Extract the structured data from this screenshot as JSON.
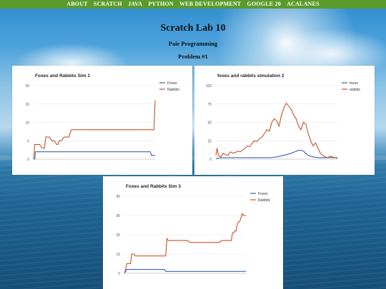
{
  "nav": {
    "items": [
      "ABOUT",
      "SCRATCH",
      "JAVA",
      "PYTHON",
      "WEB DEVELOPMENT",
      "GOOGLE 20",
      "ACALANES"
    ]
  },
  "header": {
    "title": "Scratch Lab 10",
    "subtitle": "Pair Programming",
    "problem": "Problem #1"
  },
  "colors": {
    "nav_bg": "#5a9a2b",
    "foxes": "#3b63b5",
    "rabbits": "#c7522a"
  },
  "chart_data": [
    {
      "type": "line",
      "title": "Foxes and Rabbits Sim 1",
      "ylim": [
        0,
        20
      ],
      "yticks": [
        0,
        5,
        10,
        15,
        20
      ],
      "xlim": [
        0,
        100
      ],
      "legend": "top-right",
      "grid": true,
      "series": [
        {
          "name": "Foxes",
          "color": "#3b63b5",
          "x": [
            0,
            1,
            1.5,
            2,
            4,
            96,
            97,
            100
          ],
          "y": [
            0,
            0,
            2,
            2,
            2,
            2,
            1,
            1
          ]
        },
        {
          "name": "Rabbits",
          "color": "#c7522a",
          "x": [
            0,
            0.5,
            1,
            3,
            5,
            7,
            9,
            10,
            11,
            13,
            15,
            17,
            19,
            20,
            21,
            22,
            23,
            25,
            27,
            29,
            31,
            33,
            99,
            100
          ],
          "y": [
            0,
            2,
            4,
            4,
            4,
            3,
            3,
            6,
            6,
            6,
            5,
            5,
            4,
            4,
            5,
            5,
            5,
            6,
            6,
            6,
            8,
            8,
            8,
            16
          ]
        }
      ]
    },
    {
      "type": "line",
      "title": "foxes and rabbits simulation 2",
      "ylim": [
        0,
        100
      ],
      "yticks": [
        0,
        25,
        50,
        75,
        100
      ],
      "xlim": [
        0,
        100
      ],
      "legend": "top-right",
      "grid": true,
      "series": [
        {
          "name": "foxes",
          "color": "#3b63b5",
          "x": [
            0,
            5,
            10,
            20,
            30,
            40,
            45,
            50,
            55,
            58,
            60,
            62,
            65,
            68,
            70,
            72,
            74,
            76,
            80,
            85,
            90,
            95,
            100
          ],
          "y": [
            1,
            2,
            2,
            2,
            2,
            2,
            2,
            3,
            5,
            6,
            7,
            8,
            10,
            12,
            12,
            11,
            8,
            5,
            3,
            2,
            2,
            2,
            2
          ]
        },
        {
          "name": "rabbits",
          "color": "#c7522a",
          "x": [
            0,
            1,
            2,
            4,
            6,
            8,
            10,
            12,
            14,
            16,
            18,
            20,
            22,
            24,
            26,
            28,
            30,
            32,
            34,
            36,
            38,
            40,
            42,
            44,
            46,
            48,
            50,
            52,
            54,
            56,
            58,
            60,
            62,
            64,
            66,
            68,
            70,
            72,
            74,
            76,
            78,
            80,
            82,
            84,
            86,
            88,
            90,
            92,
            94,
            96,
            98,
            100
          ],
          "y": [
            5,
            15,
            5,
            3,
            8,
            6,
            5,
            10,
            8,
            9,
            11,
            10,
            12,
            15,
            18,
            17,
            22,
            25,
            24,
            28,
            30,
            35,
            40,
            38,
            50,
            55,
            52,
            45,
            60,
            70,
            76,
            72,
            68,
            60,
            55,
            45,
            40,
            50,
            48,
            35,
            25,
            18,
            22,
            15,
            8,
            5,
            3,
            2,
            4,
            3,
            2,
            1
          ]
        }
      ]
    },
    {
      "type": "line",
      "title": "Foxes and Rabbits Sim 3",
      "ylim": [
        0,
        40
      ],
      "yticks": [
        0,
        10,
        20,
        30,
        40
      ],
      "xlim": [
        0,
        100
      ],
      "legend": "top-right",
      "grid": true,
      "series": [
        {
          "name": "Foxes",
          "color": "#3b63b5",
          "x": [
            0,
            1,
            2,
            33,
            34,
            100
          ],
          "y": [
            0,
            1,
            2,
            2,
            1,
            1
          ]
        },
        {
          "name": "Rabbits",
          "color": "#c7522a",
          "x": [
            0,
            1,
            2,
            4,
            5,
            6,
            7,
            8,
            9,
            10,
            11,
            12,
            13,
            14,
            34,
            35,
            36,
            37,
            38,
            50,
            52,
            54,
            56,
            70,
            72,
            74,
            76,
            78,
            80,
            82,
            88,
            89,
            90,
            91,
            92,
            93,
            95,
            97,
            98,
            100
          ],
          "y": [
            0,
            2,
            5,
            5,
            5,
            10,
            10,
            10,
            9,
            9,
            9,
            9,
            9,
            9,
            9,
            18,
            17,
            17,
            17,
            17,
            17,
            16,
            16,
            16,
            16,
            16,
            16,
            16,
            17,
            17,
            17,
            21,
            21,
            22,
            22,
            26,
            27,
            31,
            30,
            30
          ]
        }
      ]
    }
  ]
}
